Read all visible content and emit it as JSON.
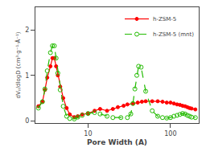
{
  "chart_data": {
    "type": "line",
    "title": "",
    "x_label": "Pore Width (A)",
    "y_label": "dVₚ/dlogD (cm³·g⁻¹·Å⁻¹)",
    "log": "x",
    "xlim": [
      2.3,
      220
    ],
    "xticks": [
      10,
      100
    ],
    "ylim": [
      -0.05,
      2.5
    ],
    "yticks": [
      0,
      1,
      2
    ],
    "grid": false,
    "legend": "upper right",
    "series": [
      {
        "name": "h-ZSM-5",
        "color": "#FF0000",
        "marker": "circle",
        "line_style": "solid",
        "x": [
          2.5,
          2.8,
          3.0,
          3.2,
          3.5,
          3.7,
          3.9,
          4.1,
          4.3,
          4.6,
          5.0,
          5.5,
          6.0,
          6.8,
          7.5,
          8.5,
          10,
          12,
          14,
          17,
          20,
          23,
          27,
          30,
          35,
          40,
          45,
          50,
          60,
          70,
          80,
          90,
          100,
          110,
          120,
          130,
          140,
          150,
          160,
          170,
          180,
          200
        ],
        "values": [
          0.32,
          0.42,
          0.68,
          0.95,
          1.2,
          1.38,
          1.38,
          1.2,
          1.0,
          0.75,
          0.5,
          0.28,
          0.14,
          0.08,
          0.1,
          0.14,
          0.16,
          0.22,
          0.26,
          0.22,
          0.26,
          0.3,
          0.33,
          0.36,
          0.38,
          0.4,
          0.42,
          0.43,
          0.43,
          0.43,
          0.42,
          0.4,
          0.4,
          0.38,
          0.36,
          0.35,
          0.33,
          0.32,
          0.3,
          0.28,
          0.27,
          0.25
        ]
      },
      {
        "name": "h-ZSM-5 (mnt)",
        "color": "#22BB00",
        "marker": "circle-open",
        "line_style": "dash",
        "x": [
          2.5,
          2.8,
          3.0,
          3.2,
          3.5,
          3.7,
          3.9,
          4.1,
          4.3,
          4.6,
          5.0,
          5.5,
          6.0,
          6.8,
          7.5,
          8.5,
          10,
          12,
          14,
          17,
          20,
          25,
          30,
          33,
          35,
          37,
          39,
          41,
          44,
          50,
          60,
          70,
          80,
          90,
          100,
          110,
          120,
          130,
          140,
          150,
          160,
          170,
          180,
          200
        ],
        "values": [
          0.28,
          0.42,
          0.7,
          1.1,
          1.5,
          1.65,
          1.65,
          1.38,
          1.05,
          0.68,
          0.32,
          0.1,
          0.05,
          0.04,
          0.08,
          0.12,
          0.16,
          0.18,
          0.15,
          0.1,
          0.07,
          0.07,
          0.07,
          0.15,
          0.38,
          0.7,
          1.0,
          1.2,
          1.18,
          0.65,
          0.22,
          0.1,
          0.07,
          0.06,
          0.07,
          0.1,
          0.12,
          0.14,
          0.16,
          0.15,
          0.12,
          0.1,
          0.08,
          0.07
        ]
      }
    ]
  }
}
